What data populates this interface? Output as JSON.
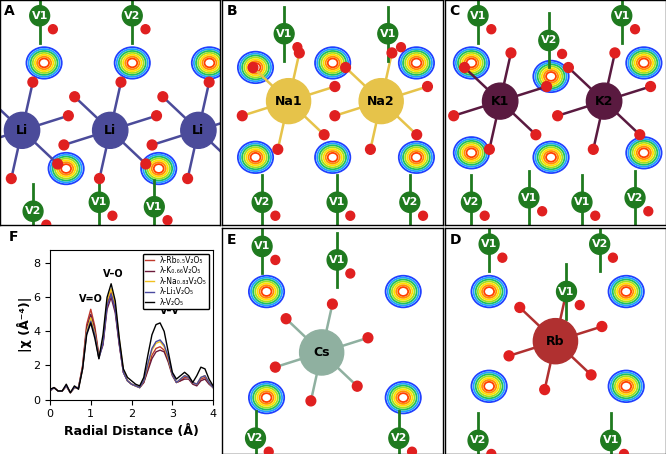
{
  "chart_data": {
    "type": "line",
    "title": "F",
    "x_label": "Radial Distance (Å)",
    "y_label": "|χ (Å⁻⁴)|",
    "x": [
      0.0,
      0.1,
      0.2,
      0.3,
      0.4,
      0.5,
      0.6,
      0.7,
      0.8,
      0.9,
      1.0,
      1.1,
      1.2,
      1.3,
      1.4,
      1.5,
      1.6,
      1.7,
      1.8,
      1.9,
      2.0,
      2.1,
      2.2,
      2.3,
      2.4,
      2.5,
      2.6,
      2.7,
      2.8,
      2.9,
      3.0,
      3.1,
      3.2,
      3.3,
      3.4,
      3.5,
      3.6,
      3.7,
      3.8,
      3.9,
      4.0
    ],
    "xlim": [
      0,
      4
    ],
    "xticks": [
      0,
      1,
      2,
      3,
      4
    ],
    "ylim": [
      0,
      8.8
    ],
    "yticks": [
      0,
      2,
      4,
      6,
      8
    ],
    "legend": "upper right",
    "series": [
      {
        "name": "λ-Rb₀.₅V₂O₅",
        "color": "#c0392b",
        "values": [
          0.5,
          0.7,
          0.5,
          0.5,
          0.8,
          0.4,
          0.7,
          0.7,
          2.0,
          4.4,
          5.3,
          4.3,
          2.6,
          3.3,
          5.6,
          6.3,
          5.3,
          3.3,
          1.6,
          1.1,
          0.9,
          0.8,
          0.7,
          1.0,
          1.8,
          2.6,
          3.0,
          3.1,
          2.9,
          2.3,
          1.5,
          1.0,
          1.1,
          1.3,
          1.3,
          1.0,
          0.9,
          1.2,
          1.3,
          1.0,
          0.7
        ]
      },
      {
        "name": "λ-K₀.₆₆V₂O₅",
        "color": "#6b1a3a",
        "values": [
          0.5,
          0.7,
          0.5,
          0.5,
          0.8,
          0.4,
          0.7,
          0.7,
          1.9,
          4.2,
          5.0,
          4.1,
          2.5,
          3.2,
          5.3,
          6.0,
          5.1,
          3.2,
          1.6,
          1.1,
          0.9,
          0.8,
          0.7,
          1.0,
          1.7,
          2.4,
          2.8,
          2.9,
          2.8,
          2.2,
          1.4,
          1.0,
          1.1,
          1.2,
          1.2,
          0.9,
          0.8,
          1.1,
          1.2,
          0.9,
          0.7
        ]
      },
      {
        "name": "λ-Na₀.₈₃V₂O₅",
        "color": "#f0c020",
        "values": [
          0.5,
          0.7,
          0.5,
          0.5,
          0.8,
          0.4,
          0.7,
          0.7,
          1.8,
          4.0,
          4.8,
          3.9,
          2.4,
          3.5,
          5.8,
          6.5,
          5.6,
          3.5,
          1.7,
          1.1,
          0.9,
          0.8,
          0.7,
          1.1,
          2.0,
          2.9,
          3.3,
          3.4,
          3.1,
          2.4,
          1.5,
          1.0,
          1.2,
          1.4,
          1.3,
          1.0,
          0.9,
          1.3,
          1.4,
          1.0,
          0.7
        ]
      },
      {
        "name": "λ-Li₁V₂O₅",
        "color": "#4a4aa0",
        "values": [
          0.5,
          0.7,
          0.5,
          0.5,
          0.8,
          0.4,
          0.7,
          0.7,
          1.8,
          3.9,
          4.6,
          3.8,
          2.4,
          3.3,
          5.5,
          6.2,
          5.3,
          3.3,
          1.6,
          1.1,
          0.9,
          0.8,
          0.7,
          1.1,
          2.1,
          3.0,
          3.4,
          3.5,
          3.2,
          2.5,
          1.5,
          1.0,
          1.2,
          1.4,
          1.3,
          1.0,
          0.9,
          1.3,
          1.4,
          1.0,
          0.7
        ]
      },
      {
        "name": "λ-V₂O₅",
        "color": "#000000",
        "values": [
          0.6,
          0.7,
          0.5,
          0.5,
          0.9,
          0.4,
          0.8,
          0.6,
          1.8,
          3.8,
          4.5,
          3.6,
          2.4,
          3.8,
          6.0,
          6.8,
          5.8,
          3.6,
          1.8,
          1.3,
          1.1,
          0.9,
          0.8,
          1.3,
          2.6,
          3.8,
          4.4,
          4.5,
          4.0,
          2.8,
          1.6,
          1.2,
          1.4,
          1.6,
          1.4,
          1.0,
          1.4,
          1.9,
          1.8,
          1.2,
          0.8
        ]
      }
    ],
    "annotations": [
      {
        "text": "V=O",
        "x": 1.0,
        "y": 5.6
      },
      {
        "text": "V–O",
        "x": 1.55,
        "y": 7.1
      },
      {
        "text": "V–V",
        "x": 2.95,
        "y": 4.9
      }
    ]
  },
  "panels": [
    {
      "label": "A",
      "atoms": [
        {
          "text": "V1",
          "color": "#1f7a1f"
        },
        {
          "text": "V2",
          "color": "#1f7a1f"
        },
        {
          "text": "Li",
          "color": "#4b4b9a"
        },
        {
          "text": "Li",
          "color": "#4b4b9a"
        },
        {
          "text": "Li",
          "color": "#4b4b9a"
        },
        {
          "text": "V2",
          "color": "#1f7a1f"
        },
        {
          "text": "V1",
          "color": "#1f7a1f"
        },
        {
          "text": "V1",
          "color": "#1f7a1f"
        }
      ]
    },
    {
      "label": "B",
      "atoms": [
        {
          "text": "V1",
          "color": "#1f7a1f"
        },
        {
          "text": "V1",
          "color": "#1f7a1f"
        },
        {
          "text": "Na1",
          "color": "#e6c34a"
        },
        {
          "text": "Na2",
          "color": "#e6c34a"
        },
        {
          "text": "V2",
          "color": "#1f7a1f"
        },
        {
          "text": "V1",
          "color": "#1f7a1f"
        },
        {
          "text": "V2",
          "color": "#1f7a1f"
        }
      ]
    },
    {
      "label": "C",
      "atoms": [
        {
          "text": "V1",
          "color": "#1f7a1f"
        },
        {
          "text": "V2",
          "color": "#1f7a1f"
        },
        {
          "text": "V1",
          "color": "#1f7a1f"
        },
        {
          "text": "K1",
          "color": "#5a1a40"
        },
        {
          "text": "K2",
          "color": "#5a1a40"
        },
        {
          "text": "V2",
          "color": "#1f7a1f"
        },
        {
          "text": "V1",
          "color": "#1f7a1f"
        },
        {
          "text": "V1",
          "color": "#1f7a1f"
        },
        {
          "text": "V2",
          "color": "#1f7a1f"
        }
      ]
    },
    {
      "label": "D",
      "atoms": [
        {
          "text": "V1",
          "color": "#1f7a1f"
        },
        {
          "text": "V2",
          "color": "#1f7a1f"
        },
        {
          "text": "Rb",
          "color": "#b03030"
        },
        {
          "text": "V1",
          "color": "#1f7a1f"
        },
        {
          "text": "V2",
          "color": "#1f7a1f"
        },
        {
          "text": "V1",
          "color": "#1f7a1f"
        }
      ]
    },
    {
      "label": "E",
      "atoms": [
        {
          "text": "V1",
          "color": "#1f7a1f"
        },
        {
          "text": "V1",
          "color": "#1f7a1f"
        },
        {
          "text": "Cs",
          "color": "#8fb0a0"
        },
        {
          "text": "V2",
          "color": "#1f7a1f"
        },
        {
          "text": "V2",
          "color": "#1f7a1f"
        }
      ]
    }
  ]
}
